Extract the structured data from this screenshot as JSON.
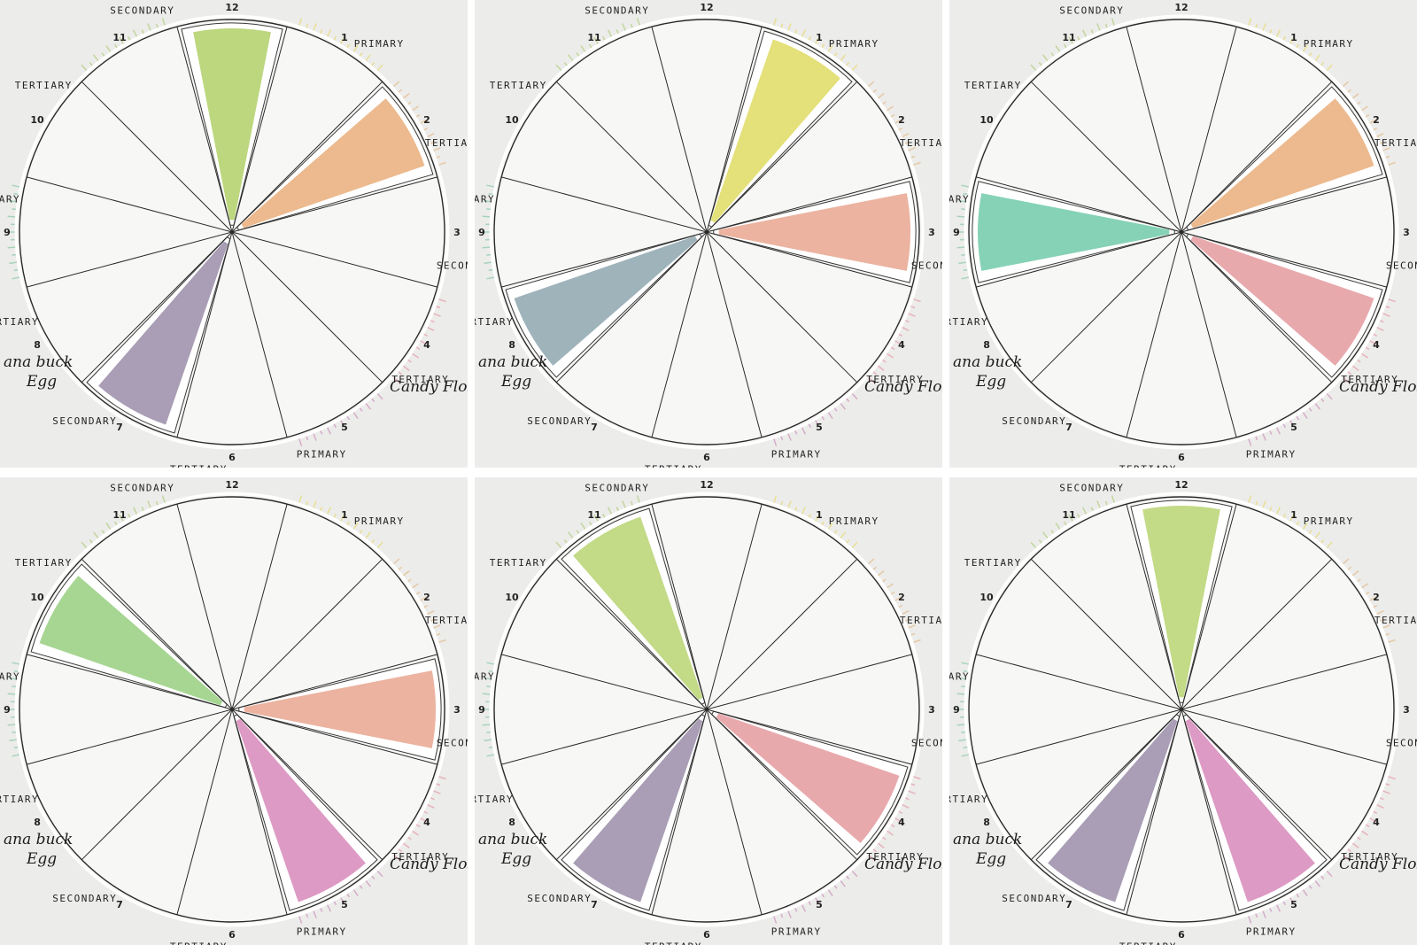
{
  "collage": {
    "description_count": 6,
    "colors": {
      "paper": "#ececea",
      "wheel": "#f7f7f5",
      "line": "#2a2a2a",
      "lime": "#bcd77e",
      "peach": "#ecba8e",
      "lavender": "#a99eb5",
      "yellow": "#e4e07a",
      "salmon": "#ecb3a0",
      "duckegg": "#9fb3bb",
      "pink": "#e8a9ad",
      "mint": "#86d2b6",
      "green": "#a7d693",
      "magenta": "#dd9ac4",
      "lightlime": "#c3da87"
    },
    "labels": {
      "tertiary": "TERTIARY",
      "secondary": "SECONDARY",
      "primary": "PRIMARY",
      "n1": "1",
      "n2": "2",
      "n3": "3",
      "n4": "4",
      "n5": "5",
      "n6": "6",
      "n7": "7",
      "n8": "8",
      "n9": "9",
      "n10": "10",
      "n11": "11",
      "n12": "12",
      "candy_floss": "Candy Floss",
      "duck_egg_1": "ana buck",
      "duck_egg_2": "Egg"
    },
    "panels": [
      {
        "painted": [
          {
            "segment": 12,
            "color": "lime"
          },
          {
            "segment": 2,
            "color": "peach"
          },
          {
            "segment": 7,
            "color": "lavender"
          }
        ]
      },
      {
        "painted": [
          {
            "segment": 1,
            "color": "yellow"
          },
          {
            "segment": 3,
            "color": "salmon"
          },
          {
            "segment": 8,
            "color": "duckegg"
          }
        ]
      },
      {
        "painted": [
          {
            "segment": 2,
            "color": "peach"
          },
          {
            "segment": 4,
            "color": "pink"
          },
          {
            "segment": 9,
            "color": "mint"
          }
        ]
      },
      {
        "painted": [
          {
            "segment": 3,
            "color": "salmon"
          },
          {
            "segment": 5,
            "color": "magenta"
          },
          {
            "segment": 10,
            "color": "green"
          }
        ]
      },
      {
        "painted": [
          {
            "segment": 4,
            "color": "pink"
          },
          {
            "segment": 7,
            "color": "lavender"
          },
          {
            "segment": 11,
            "color": "lightlime"
          }
        ]
      },
      {
        "painted": [
          {
            "segment": 12,
            "color": "lightlime"
          },
          {
            "segment": 5,
            "color": "magenta"
          },
          {
            "segment": 7,
            "color": "lavender"
          }
        ]
      }
    ]
  }
}
